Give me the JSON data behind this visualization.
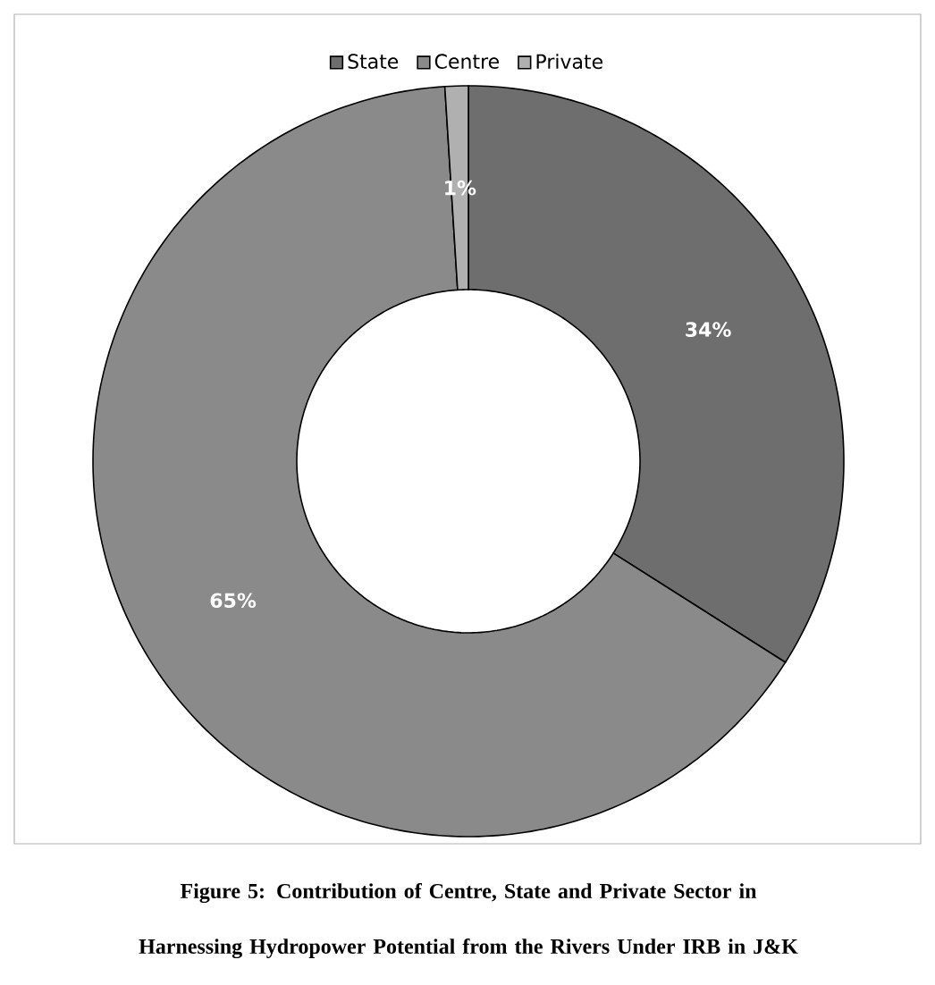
{
  "chart_data": {
    "type": "donut",
    "title": "Figure 5: Contribution of Centre, State and Private Sector in Harnessing Hydropower Potential from the Rivers Under IRB in J&K",
    "categories": [
      "State",
      "Centre",
      "Private"
    ],
    "values": [
      34,
      65,
      1
    ],
    "value_labels": [
      "34%",
      "65%",
      "1%"
    ],
    "colors": [
      "#6e6e6e",
      "#8a8a8a",
      "#b0b0b0"
    ],
    "legend": "top"
  }
}
